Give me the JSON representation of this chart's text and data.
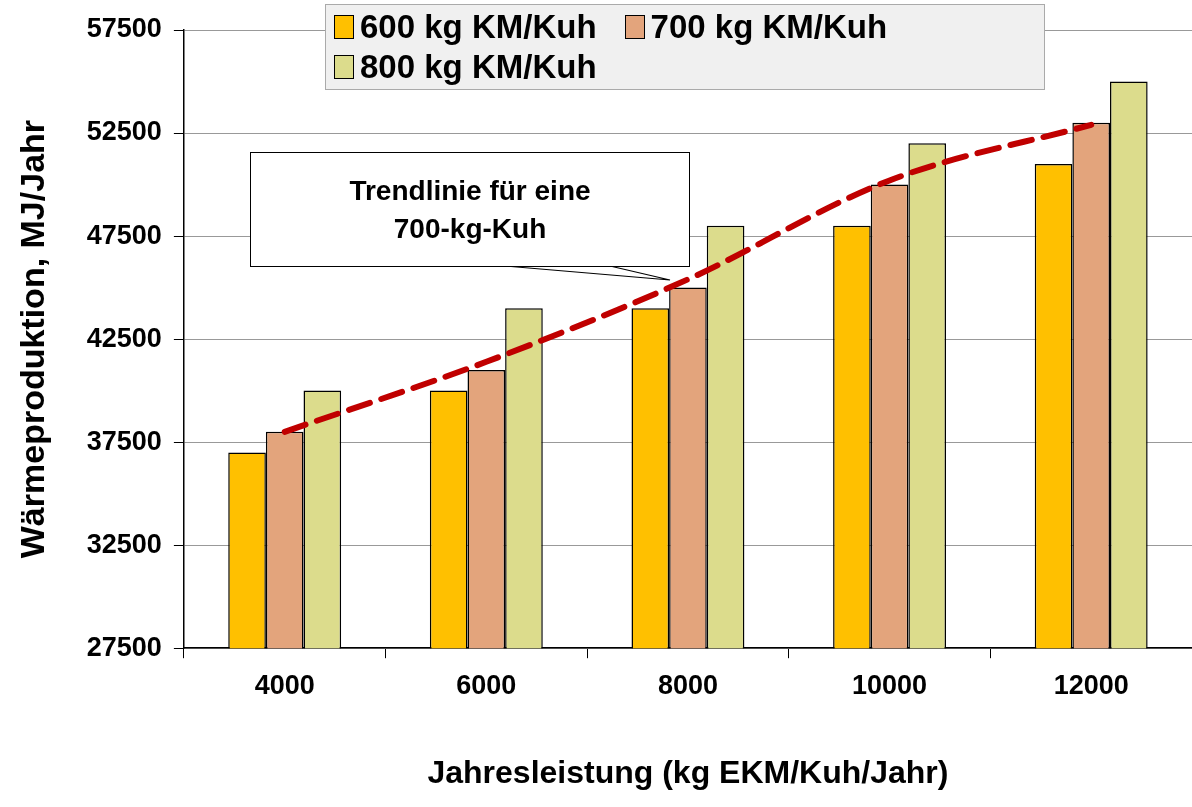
{
  "chart_data": {
    "type": "bar",
    "categories": [
      "4000",
      "6000",
      "8000",
      "10000",
      "12000"
    ],
    "xlabel": "Jahresleistung (kg EKM/Kuh/Jahr)",
    "ylabel": "Wärmeproduktion, MJ/Jahr",
    "ylim": [
      27500,
      57500
    ],
    "yticks": [
      27500,
      32500,
      37500,
      42500,
      47500,
      52500,
      57500
    ],
    "grid": "y",
    "legend": "top",
    "series": [
      {
        "name": "600 kg KM/Kuh",
        "color": "#ffc000",
        "values": [
          37000,
          40000,
          44000,
          48000,
          51000
        ]
      },
      {
        "name": "700 kg KM/Kuh",
        "color": "#e3a47c",
        "values": [
          38000,
          41000,
          45000,
          50000,
          53000
        ]
      },
      {
        "name": "800 kg KM/Kuh",
        "color": "#dcdc8c",
        "values": [
          40000,
          44000,
          48000,
          52000,
          55000
        ]
      },
      {
        "type": "line",
        "color": "#c00000",
        "line_style": "dashed",
        "marker": "none",
        "values": [
          38000,
          41400,
          45400,
          50200,
          52900
        ]
      }
    ],
    "annotations": [
      "Trendlinie für eine 700-kg-Kuh"
    ]
  }
}
